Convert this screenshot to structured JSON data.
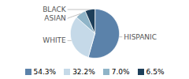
{
  "chart_data": {
    "type": "pie",
    "categories": [
      "HISPANIC",
      "WHITE",
      "ASIAN",
      "BLACK"
    ],
    "values": [
      54.3,
      32.2,
      7.0,
      6.5
    ],
    "value_labels": [
      "54.3%",
      "32.2%",
      "7.0%",
      "6.5%"
    ],
    "colors": [
      "#5b82aa",
      "#c5d9e8",
      "#8fb4c8",
      "#1e3f5a"
    ],
    "legend": "bottom"
  }
}
